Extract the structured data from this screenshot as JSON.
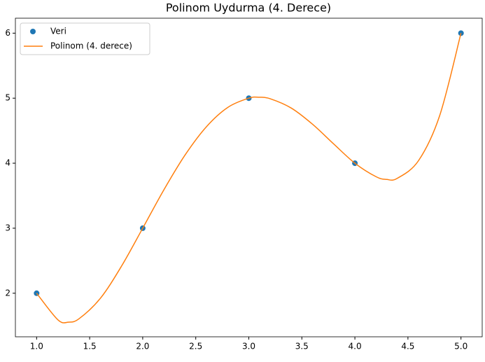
{
  "chart_data": {
    "type": "line",
    "title": "Polinom Uydurma (4. Derece)",
    "xlim": [
      0.8,
      5.2
    ],
    "ylim": [
      1.33,
      6.23
    ],
    "xticks": [
      {
        "value": 1,
        "label": "1.0"
      },
      1.5,
      {
        "value": 2,
        "label": "2.0"
      },
      2.5,
      {
        "value": 3,
        "label": "3.0"
      },
      3.5,
      {
        "value": 4,
        "label": "4.0"
      },
      4.5,
      {
        "value": 5,
        "label": "5.0"
      }
    ],
    "yticks": [
      2,
      3,
      4,
      5,
      6
    ],
    "legend": "upper left",
    "series": [
      {
        "name": "Veri",
        "kind": "scatter",
        "color": "#1f77b4",
        "x": [
          1,
          2,
          3,
          4,
          5
        ],
        "values": [
          2,
          3,
          5,
          4,
          6
        ]
      },
      {
        "name": "Polinom (4. derece)",
        "kind": "line",
        "color": "#ff7f0e",
        "x": [
          1,
          1.2,
          1.3,
          1.4,
          1.6,
          1.8,
          2,
          2.2,
          2.4,
          2.6,
          2.8,
          3,
          3.1,
          3.2,
          3.4,
          3.6,
          3.8,
          4,
          4.2,
          4.3,
          4.4,
          4.6,
          4.8,
          5
        ],
        "values": [
          2,
          1.592,
          1.555,
          1.608,
          1.92,
          2.416,
          3,
          3.592,
          4.128,
          4.56,
          4.856,
          5,
          5.014,
          4.992,
          4.848,
          4.6,
          4.296,
          4,
          3.792,
          3.75,
          3.768,
          4.04,
          4.736,
          6
        ]
      }
    ]
  }
}
